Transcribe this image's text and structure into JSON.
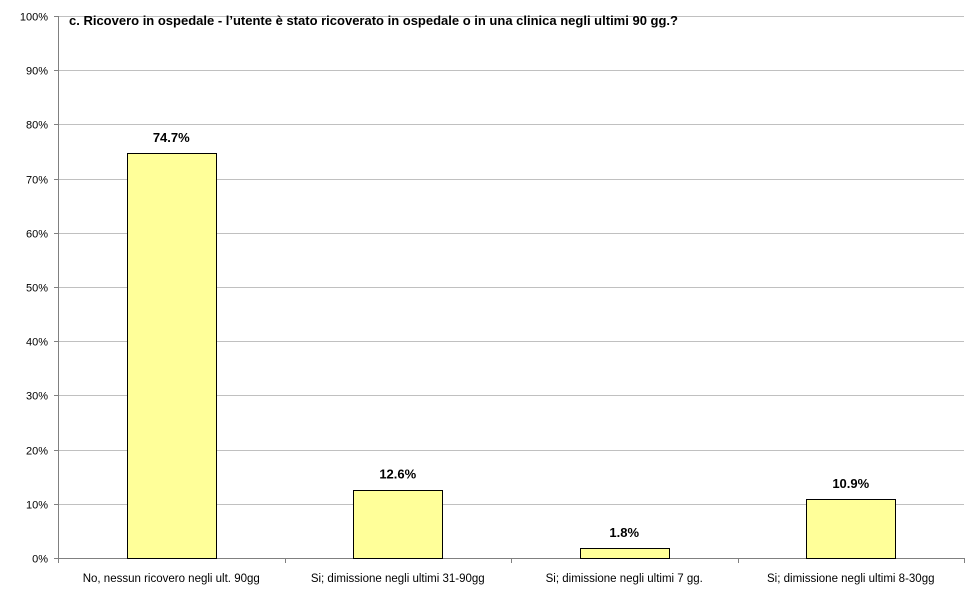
{
  "chart_data": {
    "type": "bar",
    "title": "c. Ricovero in ospedale - l’utente è stato ricoverato in ospedale o in una clinica negli ultimi 90 gg.?",
    "categories": [
      "No, nessun ricovero negli ult. 90gg",
      "Si; dimissione negli ultimi 31-90gg",
      "Si; dimissione negli ultimi 7 gg.",
      "Si; dimissione negli ultimi 8-30gg"
    ],
    "values": [
      74.7,
      12.6,
      1.8,
      10.9
    ],
    "data_labels": [
      "74.7%",
      "12.6%",
      "1.8%",
      "10.9%"
    ],
    "xlabel": "",
    "ylabel": "",
    "ylim": [
      0,
      100
    ],
    "yticks": [
      0,
      10,
      20,
      30,
      40,
      50,
      60,
      70,
      80,
      90,
      100
    ],
    "ytick_labels": [
      "0%",
      "10%",
      "20%",
      "30%",
      "40%",
      "50%",
      "60%",
      "70%",
      "80%",
      "90%",
      "100%"
    ],
    "grid": true,
    "legend": "none",
    "colors": {
      "bar_fill": "#FFFF99",
      "bar_stroke": "#000000",
      "grid": "#C0C0C0",
      "axis": "#808080",
      "background": "#FFFFFF"
    }
  }
}
